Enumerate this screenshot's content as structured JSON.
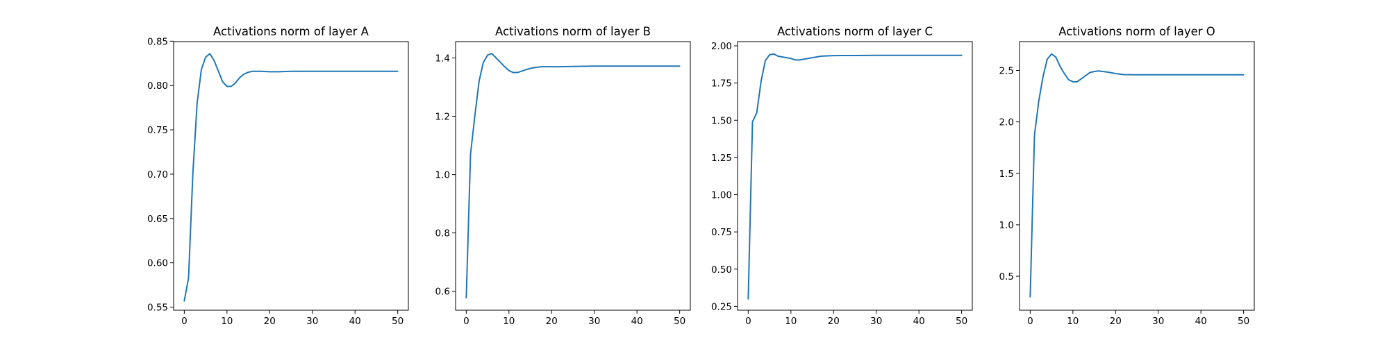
{
  "chart_data": [
    {
      "type": "line",
      "title": "Activations norm of layer A",
      "xlabel": "",
      "ylabel": "",
      "xlim": [
        -2.5,
        52.5
      ],
      "ylim": [
        0.5465,
        0.8495
      ],
      "xticks": [
        0,
        10,
        20,
        30,
        40,
        50
      ],
      "yticks": [
        0.55,
        0.6,
        0.65,
        0.7,
        0.75,
        0.8,
        0.85
      ],
      "ytick_labels": [
        "0.55",
        "0.60",
        "0.65",
        "0.70",
        "0.75",
        "0.80",
        "0.85"
      ],
      "grid": false,
      "series": [
        {
          "color": "#1f77b4",
          "x": [
            0,
            1,
            2,
            3,
            4,
            5,
            6,
            7,
            8,
            9,
            10,
            11,
            12,
            13,
            14,
            15,
            16,
            17,
            18,
            20,
            22,
            25,
            30,
            35,
            40,
            45,
            50
          ],
          "y": [
            0.557,
            0.583,
            0.7,
            0.78,
            0.818,
            0.832,
            0.836,
            0.828,
            0.816,
            0.804,
            0.799,
            0.799,
            0.803,
            0.809,
            0.813,
            0.815,
            0.816,
            0.816,
            0.816,
            0.8155,
            0.8155,
            0.816,
            0.816,
            0.816,
            0.816,
            0.816,
            0.816
          ]
        }
      ]
    },
    {
      "type": "line",
      "title": "Activations norm of layer B",
      "xlabel": "",
      "ylabel": "",
      "xlim": [
        -2.5,
        52.5
      ],
      "ylim": [
        0.535,
        1.456
      ],
      "xticks": [
        0,
        10,
        20,
        30,
        40,
        50
      ],
      "yticks": [
        0.6,
        0.8,
        1.0,
        1.2,
        1.4
      ],
      "ytick_labels": [
        "0.6",
        "0.8",
        "1.0",
        "1.2",
        "1.4"
      ],
      "grid": false,
      "series": [
        {
          "color": "#1f77b4",
          "x": [
            0,
            1,
            2,
            3,
            4,
            5,
            6,
            7,
            8,
            9,
            10,
            11,
            12,
            13,
            14,
            15,
            16,
            17,
            18,
            20,
            22,
            25,
            30,
            35,
            40,
            45,
            50
          ],
          "y": [
            0.578,
            1.07,
            1.2,
            1.32,
            1.385,
            1.41,
            1.415,
            1.4,
            1.385,
            1.37,
            1.357,
            1.35,
            1.35,
            1.355,
            1.36,
            1.364,
            1.367,
            1.369,
            1.37,
            1.37,
            1.37,
            1.371,
            1.372,
            1.372,
            1.372,
            1.372,
            1.372
          ]
        }
      ]
    },
    {
      "type": "line",
      "title": "Activations norm of layer C",
      "xlabel": "",
      "ylabel": "",
      "xlim": [
        -2.5,
        52.5
      ],
      "ylim": [
        0.224,
        2.028
      ],
      "xticks": [
        0,
        10,
        20,
        30,
        40,
        50
      ],
      "yticks": [
        0.25,
        0.5,
        0.75,
        1.0,
        1.25,
        1.5,
        1.75,
        2.0
      ],
      "ytick_labels": [
        "0.25",
        "0.50",
        "0.75",
        "1.00",
        "1.25",
        "1.50",
        "1.75",
        "2.00"
      ],
      "grid": false,
      "series": [
        {
          "color": "#1f77b4",
          "x": [
            0,
            1,
            2,
            3,
            4,
            5,
            6,
            7,
            8,
            9,
            10,
            11,
            12,
            13,
            14,
            15,
            16,
            17,
            18,
            20,
            22,
            25,
            30,
            35,
            40,
            45,
            50
          ],
          "y": [
            0.3,
            1.49,
            1.55,
            1.76,
            1.9,
            1.94,
            1.945,
            1.93,
            1.925,
            1.92,
            1.915,
            1.905,
            1.905,
            1.91,
            1.915,
            1.92,
            1.925,
            1.93,
            1.932,
            1.934,
            1.935,
            1.935,
            1.936,
            1.936,
            1.936,
            1.936,
            1.936
          ]
        }
      ]
    },
    {
      "type": "line",
      "title": "Activations norm of layer O",
      "xlabel": "",
      "ylabel": "",
      "xlim": [
        -2.5,
        52.5
      ],
      "ylim": [
        0.17,
        2.78
      ],
      "xticks": [
        0,
        10,
        20,
        30,
        40,
        50
      ],
      "yticks": [
        0.5,
        1.0,
        1.5,
        2.0,
        2.5
      ],
      "ytick_labels": [
        "0.5",
        "1.0",
        "1.5",
        "2.0",
        "2.5"
      ],
      "grid": false,
      "series": [
        {
          "color": "#1f77b4",
          "x": [
            0,
            1,
            2,
            3,
            4,
            5,
            6,
            7,
            8,
            9,
            10,
            11,
            12,
            13,
            14,
            15,
            16,
            17,
            18,
            20,
            22,
            25,
            30,
            35,
            40,
            45,
            50
          ],
          "y": [
            0.3,
            1.87,
            2.2,
            2.44,
            2.61,
            2.66,
            2.63,
            2.54,
            2.47,
            2.41,
            2.39,
            2.39,
            2.42,
            2.45,
            2.48,
            2.49,
            2.495,
            2.49,
            2.485,
            2.47,
            2.46,
            2.458,
            2.458,
            2.458,
            2.458,
            2.458,
            2.458
          ]
        }
      ]
    }
  ]
}
